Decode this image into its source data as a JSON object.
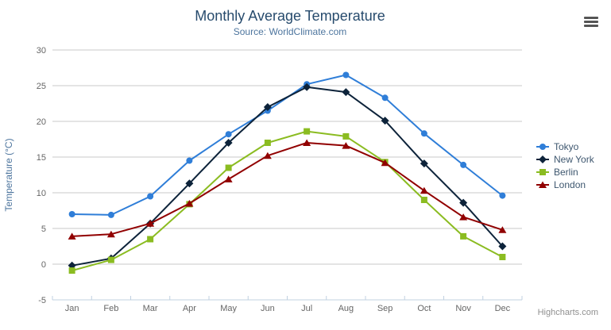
{
  "chart_data": {
    "type": "line",
    "title": "Monthly Average Temperature",
    "subtitle": "Source: WorldClimate.com",
    "xlabel": "",
    "ylabel": "Temperature (°C)",
    "ylim": [
      -5,
      30
    ],
    "ytick_step": 5,
    "grid": true,
    "legend_position": "right",
    "categories": [
      "Jan",
      "Feb",
      "Mar",
      "Apr",
      "May",
      "Jun",
      "Jul",
      "Aug",
      "Sep",
      "Oct",
      "Nov",
      "Dec"
    ],
    "series": [
      {
        "name": "Tokyo",
        "color": "#2f7ed8",
        "marker": "circle",
        "values": [
          7.0,
          6.9,
          9.5,
          14.5,
          18.2,
          21.5,
          25.2,
          26.5,
          23.3,
          18.3,
          13.9,
          9.6
        ]
      },
      {
        "name": "New York",
        "color": "#0d233a",
        "marker": "diamond",
        "values": [
          -0.2,
          0.8,
          5.7,
          11.3,
          17.0,
          22.0,
          24.8,
          24.1,
          20.1,
          14.1,
          8.6,
          2.5
        ]
      },
      {
        "name": "Berlin",
        "color": "#8bbc21",
        "marker": "square",
        "values": [
          -0.9,
          0.6,
          3.5,
          8.4,
          13.5,
          17.0,
          18.6,
          17.9,
          14.3,
          9.0,
          3.9,
          1.0
        ]
      },
      {
        "name": "London",
        "color": "#910000",
        "marker": "triangle",
        "values": [
          3.9,
          4.2,
          5.7,
          8.5,
          11.9,
          15.2,
          17.0,
          16.6,
          14.2,
          10.3,
          6.6,
          4.8
        ]
      }
    ]
  },
  "toolbar": {
    "menu_icon": "hamburger-menu-icon"
  },
  "credits": {
    "label": "Highcharts.com"
  },
  "theme": {
    "title_color": "#274b6d",
    "subtitle_color": "#4d759e",
    "axis_title_color": "#4d759e",
    "axis_label_color": "#666666",
    "legend_text_color": "#3e576f",
    "grid_color": "#c8c8c8",
    "axis_line_color": "#c0d0e0",
    "credits_color": "#909090",
    "menu_icon_color": "#555555"
  }
}
